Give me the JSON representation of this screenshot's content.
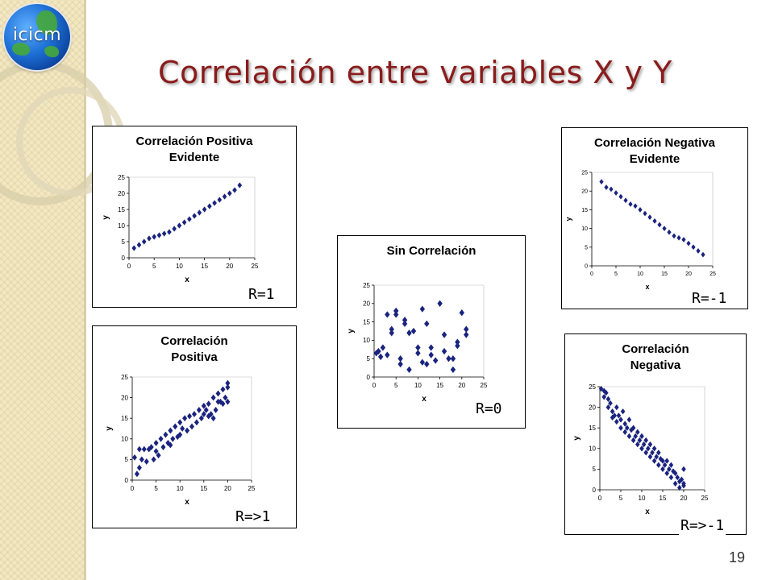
{
  "slide": {
    "title": "Correlación entre variables X y Y",
    "page_number": "19"
  },
  "logo": {
    "text": "icicm"
  },
  "chart_data": [
    {
      "id": "pos-evidente",
      "type": "scatter",
      "title_lines": [
        "Correlación Positiva",
        "Evidente"
      ],
      "xlabel": "x",
      "ylabel": "y",
      "xlim": [
        0,
        25
      ],
      "ylim": [
        0,
        25
      ],
      "xticks": [
        "0",
        "5",
        "10",
        "15",
        "20",
        "25"
      ],
      "yticks": [
        "0",
        "5",
        "10",
        "15",
        "20",
        "25"
      ],
      "annotation": "R=1",
      "points": [
        [
          1,
          3
        ],
        [
          2,
          4
        ],
        [
          3,
          5
        ],
        [
          4,
          6
        ],
        [
          5,
          6.5
        ],
        [
          6,
          7
        ],
        [
          7,
          7.5
        ],
        [
          8,
          8
        ],
        [
          9,
          9
        ],
        [
          10,
          10
        ],
        [
          11,
          11
        ],
        [
          12,
          12
        ],
        [
          13,
          13
        ],
        [
          14,
          14
        ],
        [
          15,
          15
        ],
        [
          16,
          16
        ],
        [
          17,
          17
        ],
        [
          18,
          18
        ],
        [
          19,
          19
        ],
        [
          20,
          20
        ],
        [
          21,
          21
        ],
        [
          22,
          22.5
        ]
      ]
    },
    {
      "id": "negativa-evidente",
      "type": "scatter",
      "title_lines": [
        "Correlación Negativa",
        "Evidente"
      ],
      "xlabel": "x",
      "ylabel": "y",
      "xlim": [
        0,
        25
      ],
      "ylim": [
        0,
        25
      ],
      "xticks": [
        "0",
        "5",
        "10",
        "15",
        "20",
        "25"
      ],
      "yticks": [
        "0",
        "5",
        "10",
        "15",
        "20",
        "25"
      ],
      "annotation": "R=-1",
      "points": [
        [
          2,
          22.5
        ],
        [
          3,
          21
        ],
        [
          4,
          20.5
        ],
        [
          5,
          19.5
        ],
        [
          6,
          18.5
        ],
        [
          7,
          17.5
        ],
        [
          8,
          16.5
        ],
        [
          9,
          16
        ],
        [
          10,
          15
        ],
        [
          11,
          14
        ],
        [
          12,
          13
        ],
        [
          13,
          12
        ],
        [
          14,
          11
        ],
        [
          15,
          10
        ],
        [
          16,
          9
        ],
        [
          17,
          8
        ],
        [
          18,
          7.5
        ],
        [
          19,
          7
        ],
        [
          20,
          6
        ],
        [
          21,
          5
        ],
        [
          22,
          4
        ],
        [
          23,
          3
        ]
      ]
    },
    {
      "id": "sin-correlacion",
      "type": "scatter",
      "title_lines": [
        "Sin Correlación"
      ],
      "xlabel": "x",
      "ylabel": "y",
      "xlim": [
        0,
        25
      ],
      "ylim": [
        0,
        25
      ],
      "xticks": [
        "0",
        "5",
        "10",
        "15",
        "20",
        "25"
      ],
      "yticks": [
        "0",
        "5",
        "10",
        "15",
        "20",
        "25"
      ],
      "annotation": "R=0",
      "points": [
        [
          0.5,
          6.5
        ],
        [
          1,
          7
        ],
        [
          1.5,
          5.5
        ],
        [
          2,
          8
        ],
        [
          3,
          17
        ],
        [
          3,
          6
        ],
        [
          4,
          13
        ],
        [
          4,
          12
        ],
        [
          5,
          18
        ],
        [
          5,
          17
        ],
        [
          6,
          5
        ],
        [
          6,
          3.5
        ],
        [
          7,
          15.5
        ],
        [
          7,
          14.5
        ],
        [
          8,
          2
        ],
        [
          8,
          12
        ],
        [
          9,
          12.5
        ],
        [
          10,
          8
        ],
        [
          10,
          6.5
        ],
        [
          11,
          18.5
        ],
        [
          11,
          4
        ],
        [
          12,
          14.5
        ],
        [
          12,
          3.5
        ],
        [
          13,
          8
        ],
        [
          13,
          6
        ],
        [
          14,
          4.5
        ],
        [
          15,
          20
        ],
        [
          16,
          11.5
        ],
        [
          16,
          7
        ],
        [
          17,
          5
        ],
        [
          18,
          2
        ],
        [
          18,
          5
        ],
        [
          19,
          9.5
        ],
        [
          19,
          8.5
        ],
        [
          20,
          17.5
        ],
        [
          21,
          13
        ],
        [
          21,
          11.5
        ]
      ]
    },
    {
      "id": "positiva",
      "type": "scatter",
      "title_lines": [
        "Correlación",
        "Positiva"
      ],
      "xlabel": "x",
      "ylabel": "y",
      "xlim": [
        0,
        25
      ],
      "ylim": [
        0,
        25
      ],
      "xticks": [
        "0",
        "5",
        "10",
        "15",
        "20",
        "25"
      ],
      "yticks": [
        "0",
        "5",
        "10",
        "15",
        "20",
        "25"
      ],
      "annotation": "R=>1",
      "points": [
        [
          0.5,
          5.5
        ],
        [
          1,
          1.5
        ],
        [
          1.5,
          3
        ],
        [
          1.5,
          7.5
        ],
        [
          2,
          5
        ],
        [
          2.5,
          7.5
        ],
        [
          3,
          4.5
        ],
        [
          3.5,
          7.5
        ],
        [
          4,
          8
        ],
        [
          4.5,
          5
        ],
        [
          5,
          9
        ],
        [
          5,
          7
        ],
        [
          5.5,
          6
        ],
        [
          6,
          10
        ],
        [
          6.5,
          8
        ],
        [
          7,
          11
        ],
        [
          7.5,
          9
        ],
        [
          8,
          12
        ],
        [
          8,
          8.5
        ],
        [
          8.5,
          10
        ],
        [
          9,
          13
        ],
        [
          9.5,
          10.5
        ],
        [
          10,
          14
        ],
        [
          10,
          11
        ],
        [
          10.5,
          12.5
        ],
        [
          11,
          15
        ],
        [
          11.5,
          12
        ],
        [
          12,
          15.5
        ],
        [
          12.5,
          13
        ],
        [
          13,
          16
        ],
        [
          13.5,
          14
        ],
        [
          14,
          17
        ],
        [
          14.5,
          15
        ],
        [
          15,
          18
        ],
        [
          15,
          16
        ],
        [
          15.5,
          17
        ],
        [
          16,
          18.5
        ],
        [
          16.5,
          16
        ],
        [
          17,
          20
        ],
        [
          17.5,
          17
        ],
        [
          18,
          21
        ],
        [
          18.5,
          19
        ],
        [
          19,
          22
        ],
        [
          19,
          18.5
        ],
        [
          19.5,
          20
        ],
        [
          20,
          23.5
        ],
        [
          20,
          22.5
        ],
        [
          20,
          19
        ],
        [
          17,
          15
        ],
        [
          16,
          15.5
        ],
        [
          18,
          19
        ]
      ]
    },
    {
      "id": "negativa",
      "type": "scatter",
      "title_lines": [
        "Correlación",
        "Negativa"
      ],
      "xlabel": "x",
      "ylabel": "y",
      "xlim": [
        0,
        25
      ],
      "ylim": [
        0,
        25
      ],
      "xticks": [
        "0",
        "5",
        "10",
        "15",
        "20",
        "25"
      ],
      "yticks": [
        "0",
        "5",
        "10",
        "15",
        "20",
        "25"
      ],
      "annotation": "R=>-1",
      "points": [
        [
          0.3,
          24.5
        ],
        [
          1,
          24
        ],
        [
          1,
          22.5
        ],
        [
          1.5,
          23.5
        ],
        [
          2,
          22
        ],
        [
          2,
          20
        ],
        [
          2.5,
          21
        ],
        [
          3,
          19
        ],
        [
          3,
          17.5
        ],
        [
          3.5,
          18
        ],
        [
          4,
          20
        ],
        [
          4,
          16.5
        ],
        [
          4.5,
          18
        ],
        [
          5,
          17
        ],
        [
          5,
          15
        ],
        [
          5.5,
          19
        ],
        [
          6,
          16
        ],
        [
          6,
          14
        ],
        [
          6.5,
          15
        ],
        [
          7,
          17
        ],
        [
          7,
          13
        ],
        [
          7.5,
          14.5
        ],
        [
          8,
          15
        ],
        [
          8,
          12
        ],
        [
          8.5,
          13
        ],
        [
          9,
          14
        ],
        [
          9,
          11
        ],
        [
          9.5,
          12
        ],
        [
          10,
          13
        ],
        [
          10,
          10
        ],
        [
          10.5,
          11
        ],
        [
          11,
          12
        ],
        [
          11,
          9
        ],
        [
          11.5,
          10
        ],
        [
          12,
          11
        ],
        [
          12,
          8
        ],
        [
          12.5,
          9
        ],
        [
          13,
          10
        ],
        [
          13,
          7
        ],
        [
          13.5,
          8
        ],
        [
          14,
          9
        ],
        [
          14,
          6
        ],
        [
          14.5,
          7.5
        ],
        [
          15,
          7
        ],
        [
          15,
          5
        ],
        [
          15.5,
          6
        ],
        [
          16,
          7
        ],
        [
          16,
          4
        ],
        [
          16.5,
          5
        ],
        [
          17,
          6
        ],
        [
          17,
          3
        ],
        [
          17.5,
          4.5
        ],
        [
          18,
          4
        ],
        [
          18,
          1.5
        ],
        [
          18.5,
          3
        ],
        [
          19,
          2
        ],
        [
          19,
          0.5
        ],
        [
          19.5,
          2.5
        ],
        [
          20,
          1.5
        ],
        [
          20,
          5
        ],
        [
          20,
          1
        ]
      ]
    }
  ]
}
